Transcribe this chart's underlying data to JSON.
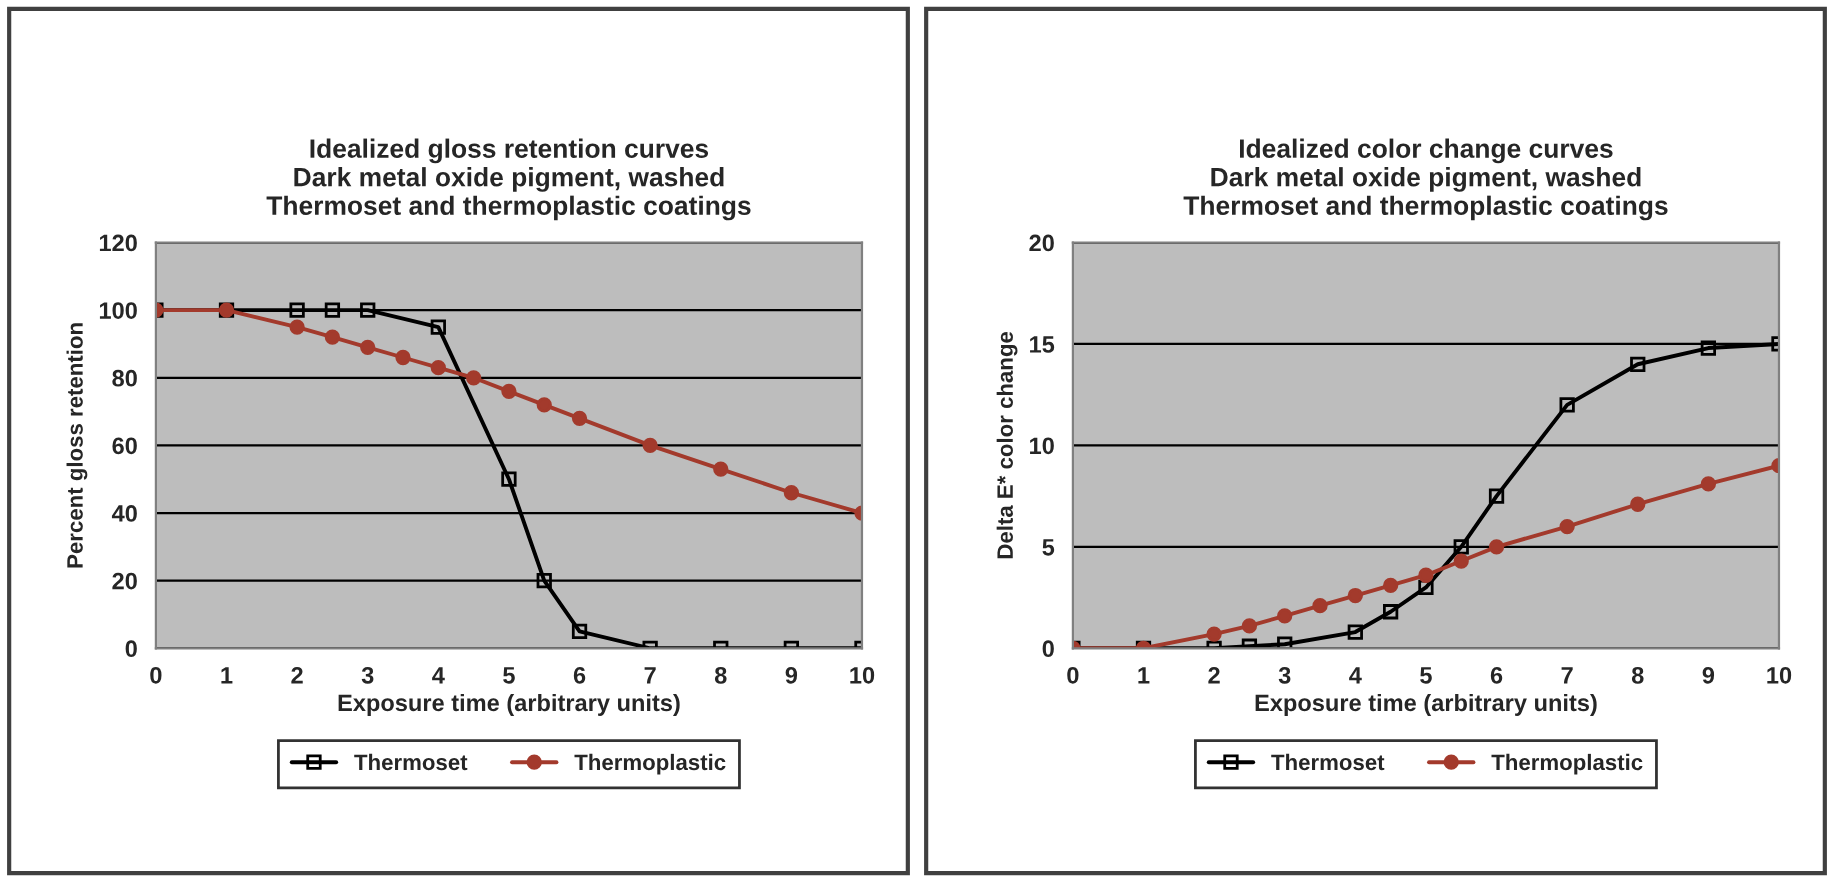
{
  "chart_data": [
    {
      "type": "line",
      "title": "Idealized gloss retention curves\nDark metal oxide pigment, washed\nThermoset and thermoplastic coatings",
      "xlabel": "Exposure time (arbitrary units)",
      "ylabel": "Percent gloss retention",
      "xlim": [
        0,
        10
      ],
      "xticks": [
        0,
        1,
        2,
        3,
        4,
        5,
        6,
        7,
        8,
        9,
        10
      ],
      "ylim": [
        0,
        120
      ],
      "yticks": [
        0,
        20,
        40,
        60,
        80,
        100,
        120
      ],
      "grid": "y",
      "legend": "bottom",
      "series": [
        {
          "name": "Thermoset",
          "color": "#000000",
          "marker": "square",
          "x": [
            0,
            1,
            2,
            2.5,
            3,
            4,
            5,
            5.5,
            6,
            7,
            8,
            9,
            10
          ],
          "values": [
            100,
            100,
            100,
            100,
            100,
            95,
            50,
            20,
            5,
            0,
            0,
            0,
            0
          ]
        },
        {
          "name": "Thermoplastic",
          "color": "#a33a2c",
          "marker": "circle",
          "x": [
            0,
            1,
            2,
            2.5,
            3,
            3.5,
            4,
            4.5,
            5,
            5.5,
            6,
            7,
            8,
            9,
            10
          ],
          "values": [
            100,
            100,
            95,
            92,
            89,
            86,
            83,
            80,
            76,
            72,
            68,
            60,
            53,
            46,
            40
          ]
        }
      ]
    },
    {
      "type": "line",
      "title": "Idealized color change curves\nDark metal oxide pigment, washed\nThermoset and thermoplastic coatings",
      "xlabel": "Exposure time (arbitrary units)",
      "ylabel": "Delta E* color change",
      "xlim": [
        0,
        10
      ],
      "xticks": [
        0,
        1,
        2,
        3,
        4,
        5,
        6,
        7,
        8,
        9,
        10
      ],
      "ylim": [
        0,
        20
      ],
      "yticks": [
        0,
        5,
        10,
        15,
        20
      ],
      "grid": "y",
      "legend": "bottom",
      "series": [
        {
          "name": "Thermoset",
          "color": "#000000",
          "marker": "square",
          "x": [
            0,
            1,
            2,
            2.5,
            3,
            4,
            4.5,
            5,
            5.5,
            6,
            7,
            8,
            9,
            10
          ],
          "values": [
            0,
            0,
            0,
            0.1,
            0.2,
            0.8,
            1.8,
            3,
            5,
            7.5,
            12,
            14,
            14.8,
            15
          ]
        },
        {
          "name": "Thermoplastic",
          "color": "#a33a2c",
          "marker": "circle",
          "x": [
            0,
            1,
            2,
            2.5,
            3,
            3.5,
            4,
            4.5,
            5,
            5.5,
            6,
            7,
            8,
            9,
            10
          ],
          "values": [
            0,
            0,
            0.7,
            1.1,
            1.6,
            2.1,
            2.6,
            3.1,
            3.6,
            4.3,
            5,
            6,
            7.1,
            8.1,
            9
          ]
        }
      ]
    }
  ]
}
